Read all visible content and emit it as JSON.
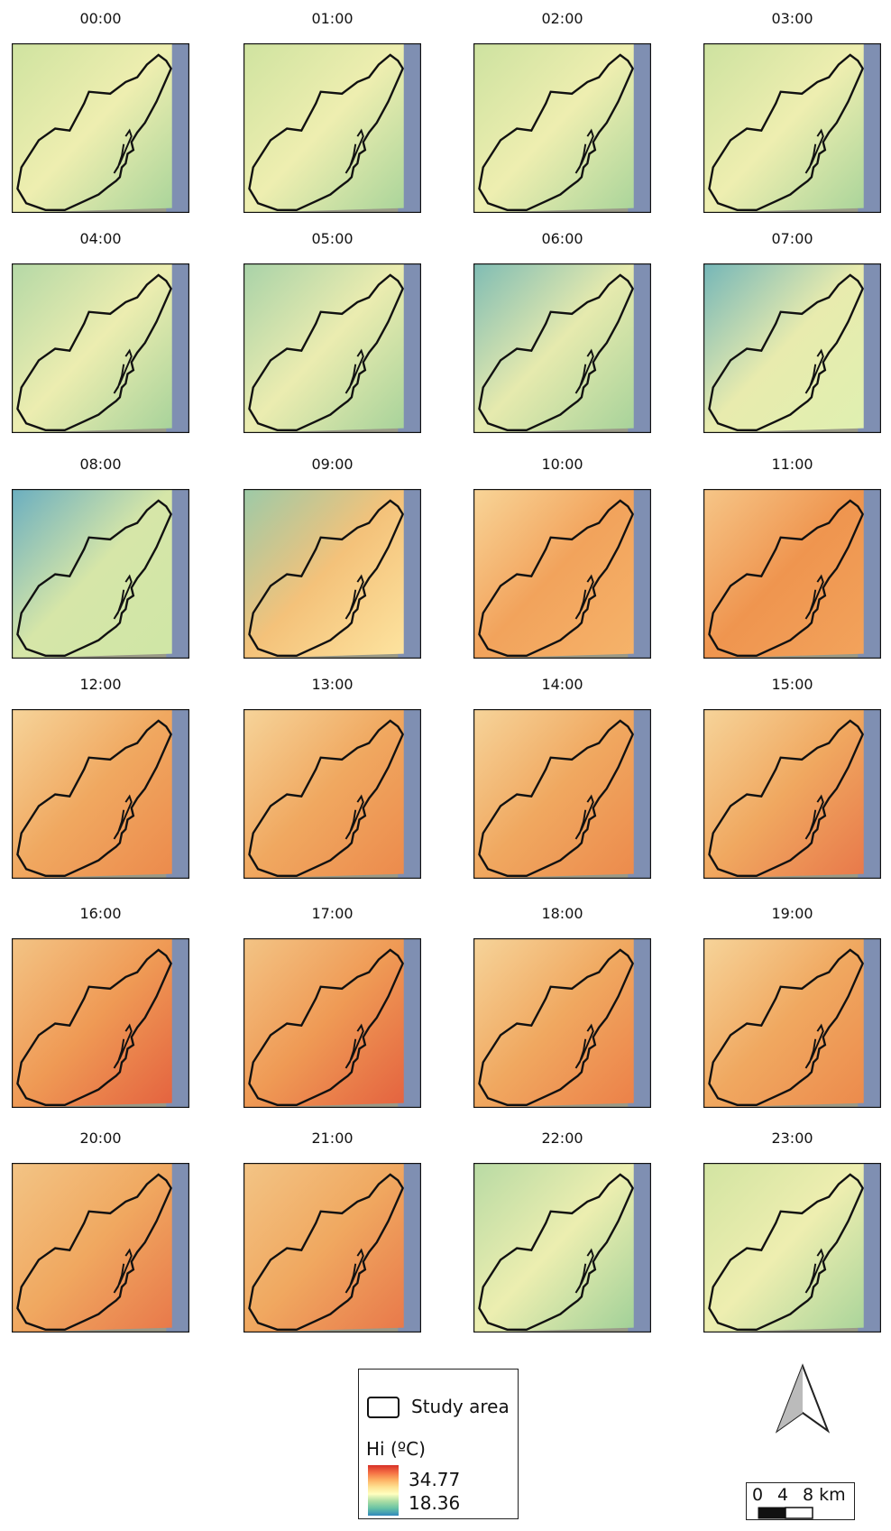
{
  "panels": [
    {
      "label": "00:00",
      "colors": [
        "#cfe3a0",
        "#eeeeb0",
        "#a9d49a"
      ]
    },
    {
      "label": "01:00",
      "colors": [
        "#cfe3a0",
        "#eeeeb0",
        "#a9d49a"
      ]
    },
    {
      "label": "02:00",
      "colors": [
        "#cde2a0",
        "#eeeeb0",
        "#a9d49a"
      ]
    },
    {
      "label": "03:00",
      "colors": [
        "#cde2a0",
        "#eeeeb0",
        "#a9d49a"
      ]
    },
    {
      "label": "04:00",
      "colors": [
        "#b4d8a6",
        "#ecedb0",
        "#a6d29a"
      ]
    },
    {
      "label": "05:00",
      "colors": [
        "#a8d2a8",
        "#ebecb0",
        "#a6d29a"
      ]
    },
    {
      "label": "06:00",
      "colors": [
        "#7fbcb4",
        "#e6eaae",
        "#a6d29a"
      ]
    },
    {
      "label": "07:00",
      "colors": [
        "#74b6b8",
        "#e8ebae",
        "#dff0b0"
      ]
    },
    {
      "label": "08:00",
      "colors": [
        "#6aaec0",
        "#d6e6a8",
        "#cfe6a6"
      ]
    },
    {
      "label": "09:00",
      "colors": [
        "#9ccaa8",
        "#f4c27a",
        "#fde4a0"
      ]
    },
    {
      "label": "10:00",
      "colors": [
        "#f8d598",
        "#f2a35c",
        "#f5b36a"
      ]
    },
    {
      "label": "11:00",
      "colors": [
        "#f6c688",
        "#ef954f",
        "#f2a35c"
      ]
    },
    {
      "label": "12:00",
      "colors": [
        "#f6d49a",
        "#f0a860",
        "#ec8a4c"
      ]
    },
    {
      "label": "13:00",
      "colors": [
        "#f6d49a",
        "#f0a860",
        "#ec8a4c"
      ]
    },
    {
      "label": "14:00",
      "colors": [
        "#f6d49a",
        "#f0a860",
        "#ec8a4c"
      ]
    },
    {
      "label": "15:00",
      "colors": [
        "#f6d49a",
        "#f0a860",
        "#e8784a"
      ]
    },
    {
      "label": "16:00",
      "colors": [
        "#f3c485",
        "#ef9a55",
        "#e4623f"
      ]
    },
    {
      "label": "17:00",
      "colors": [
        "#f3c485",
        "#ef9a55",
        "#e4623f"
      ]
    },
    {
      "label": "18:00",
      "colors": [
        "#f6d49a",
        "#f0a860",
        "#ec8048"
      ]
    },
    {
      "label": "19:00",
      "colors": [
        "#f6d49a",
        "#f0a860",
        "#ec8a4c"
      ]
    },
    {
      "label": "20:00",
      "colors": [
        "#f3c485",
        "#f0a860",
        "#e8784a"
      ]
    },
    {
      "label": "21:00",
      "colors": [
        "#f3c485",
        "#f0a860",
        "#e8784a"
      ]
    },
    {
      "label": "22:00",
      "colors": [
        "#b8daa4",
        "#eceeb0",
        "#a0d098"
      ]
    },
    {
      "label": "23:00",
      "colors": [
        "#d2e4a2",
        "#eeeeb0",
        "#a9d49a"
      ]
    }
  ],
  "legend": {
    "outline_label": "Study area",
    "title": "Hi (ºC)",
    "max": "34.77",
    "min": "18.36",
    "ramp": [
      "#d73027",
      "#f46d43",
      "#fdae61",
      "#fee090",
      "#ffffbf",
      "#abdda4",
      "#66c2a5",
      "#3288bd"
    ]
  },
  "scale_bar": {
    "ticks": [
      "0",
      "4",
      "8 km"
    ]
  }
}
